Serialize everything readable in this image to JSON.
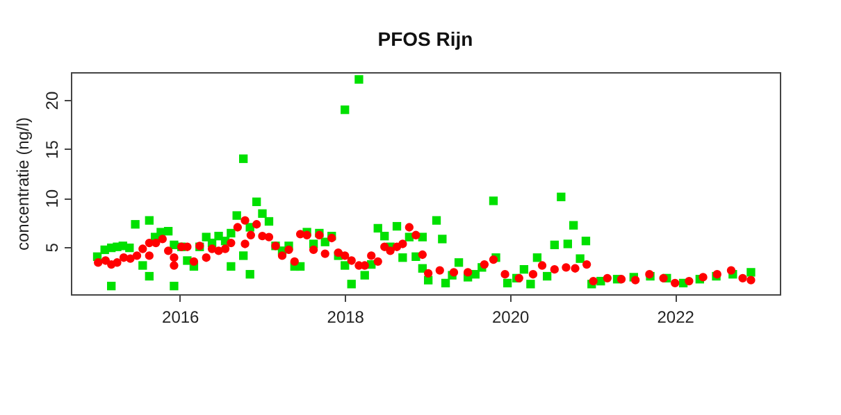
{
  "chart_data": {
    "type": "scatter",
    "title": "PFOS Rijn",
    "ylabel": "concentratie (ng/l)",
    "xlim": [
      2014.68,
      2023.27
    ],
    "ylim": [
      0.16,
      22.84
    ],
    "xticks": [
      2016,
      2018,
      2020,
      2022
    ],
    "yticks": [
      5,
      10,
      15,
      20
    ],
    "grid": false,
    "series": [
      {
        "color": "#00e000",
        "marker": "square",
        "x": [
          2015.0,
          2015.09,
          2015.17,
          2015.17,
          2015.24,
          2015.31,
          2015.39,
          2015.46,
          2015.55,
          2015.63,
          2015.63,
          2015.7,
          2015.77,
          2015.86,
          2015.93,
          2015.93,
          2016.02,
          2016.09,
          2016.17,
          2016.24,
          2016.32,
          2016.39,
          2016.47,
          2016.55,
          2016.62,
          2016.62,
          2016.69,
          2016.77,
          2016.77,
          2016.85,
          2016.85,
          2016.93,
          2017.0,
          2017.08,
          2017.16,
          2017.24,
          2017.32,
          2017.39,
          2017.46,
          2017.54,
          2017.62,
          2017.69,
          2017.76,
          2017.84,
          2017.92,
          2018.0,
          2018.0,
          2018.08,
          2018.17,
          2018.24,
          2018.32,
          2018.4,
          2018.48,
          2018.55,
          2018.63,
          2018.7,
          2018.78,
          2018.86,
          2018.94,
          2018.94,
          2019.01,
          2019.11,
          2019.18,
          2019.22,
          2019.3,
          2019.38,
          2019.49,
          2019.58,
          2019.66,
          2019.8,
          2019.83,
          2019.97,
          2020.08,
          2020.17,
          2020.25,
          2020.33,
          2020.45,
          2020.54,
          2020.62,
          2020.7,
          2020.77,
          2020.85,
          2020.92,
          2020.99,
          2021.1,
          2021.3,
          2021.5,
          2021.7,
          2021.9,
          2022.1,
          2022.3,
          2022.5,
          2022.7,
          2022.92
        ],
        "values": [
          4.0,
          4.7,
          4.9,
          1.0,
          5.0,
          5.1,
          4.9,
          7.3,
          3.1,
          2.0,
          7.7,
          6.0,
          6.5,
          6.6,
          1.0,
          5.2,
          5.0,
          3.6,
          3.0,
          5.0,
          6.0,
          5.4,
          6.1,
          5.6,
          3.0,
          6.4,
          8.2,
          14.0,
          4.1,
          2.2,
          7.0,
          9.6,
          8.4,
          7.6,
          5.1,
          4.6,
          5.1,
          3.0,
          3.0,
          6.5,
          5.3,
          6.4,
          5.5,
          6.1,
          4.1,
          19.0,
          3.1,
          1.2,
          22.1,
          2.1,
          3.2,
          6.9,
          6.1,
          5.0,
          7.1,
          3.9,
          6.0,
          4.0,
          6.0,
          2.8,
          1.6,
          7.7,
          5.8,
          1.3,
          2.1,
          3.4,
          1.9,
          2.2,
          2.9,
          9.7,
          3.9,
          1.3,
          1.8,
          2.7,
          1.2,
          3.9,
          2.0,
          5.2,
          10.1,
          5.3,
          7.2,
          3.8,
          5.6,
          1.2,
          1.5,
          1.7,
          1.9,
          2.0,
          1.8,
          1.3,
          1.7,
          2.0,
          2.2,
          2.4
        ]
      },
      {
        "color": "#ff0000",
        "marker": "circle",
        "x": [
          2015.01,
          2015.1,
          2015.17,
          2015.24,
          2015.32,
          2015.4,
          2015.48,
          2015.55,
          2015.63,
          2015.63,
          2015.71,
          2015.79,
          2015.86,
          2015.93,
          2015.93,
          2016.02,
          2016.09,
          2016.17,
          2016.24,
          2016.32,
          2016.39,
          2016.47,
          2016.55,
          2016.62,
          2016.7,
          2016.79,
          2016.79,
          2016.86,
          2016.93,
          2017.0,
          2017.08,
          2017.16,
          2017.24,
          2017.32,
          2017.39,
          2017.46,
          2017.54,
          2017.62,
          2017.69,
          2017.76,
          2017.84,
          2017.92,
          2018.0,
          2018.08,
          2018.17,
          2018.24,
          2018.32,
          2018.4,
          2018.48,
          2018.55,
          2018.63,
          2018.7,
          2018.78,
          2018.86,
          2018.94,
          2019.01,
          2019.15,
          2019.32,
          2019.49,
          2019.69,
          2019.8,
          2019.94,
          2020.11,
          2020.28,
          2020.39,
          2020.54,
          2020.68,
          2020.79,
          2020.93,
          2021.01,
          2021.18,
          2021.35,
          2021.52,
          2021.69,
          2021.86,
          2022.0,
          2022.17,
          2022.34,
          2022.51,
          2022.68,
          2022.82,
          2022.92
        ],
        "values": [
          3.4,
          3.6,
          3.2,
          3.4,
          3.9,
          3.8,
          4.1,
          4.8,
          5.4,
          4.1,
          5.4,
          5.8,
          4.6,
          3.1,
          3.9,
          5.0,
          5.0,
          3.5,
          5.1,
          3.9,
          4.8,
          4.6,
          4.8,
          5.4,
          7.0,
          7.7,
          5.3,
          6.2,
          7.3,
          6.1,
          6.0,
          5.1,
          4.1,
          4.7,
          3.5,
          6.3,
          6.2,
          4.7,
          6.2,
          4.3,
          5.9,
          4.4,
          4.1,
          3.6,
          3.1,
          3.1,
          4.1,
          3.5,
          5.0,
          4.6,
          5.0,
          5.3,
          7.0,
          6.2,
          4.2,
          2.3,
          2.6,
          2.4,
          2.4,
          3.2,
          3.7,
          2.2,
          1.8,
          2.2,
          3.1,
          2.7,
          2.9,
          2.8,
          3.2,
          1.5,
          1.8,
          1.7,
          1.6,
          2.2,
          1.8,
          1.3,
          1.5,
          1.9,
          2.2,
          2.6,
          1.8,
          1.6
        ]
      }
    ]
  }
}
